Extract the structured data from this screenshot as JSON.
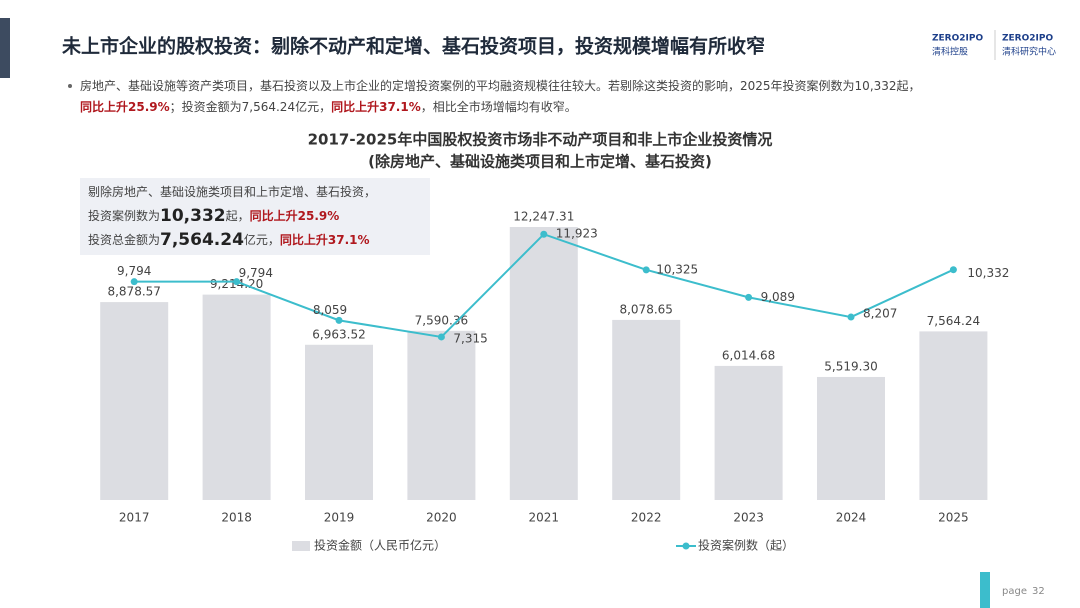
{
  "header": {
    "title": "未上市企业的股权投资：剔除不动产和定增、基石投资项目，投资规模增幅有所收窄",
    "logos": [
      {
        "brand": "ZERO2IPO",
        "name": "清科控股"
      },
      {
        "brand": "ZERO2IPO",
        "name": "清科研究中心"
      }
    ]
  },
  "bullet": {
    "lines": [
      [
        {
          "text": "房地产、基础设施等资产类项目，基石投资以及上市企业的定增投资案例的平均融资规模往往较大。若剔除这类投资的影响，2025年投资案例数为10,332起，",
          "emphasis": false
        }
      ],
      [
        {
          "text": "同比上升25.9%",
          "emphasis": true
        },
        {
          "text": "；投资金额为7,564.24亿元，",
          "emphasis": false
        },
        {
          "text": "同比上升37.1%",
          "emphasis": true
        },
        {
          "text": "，相比全市场增幅均有收窄。",
          "emphasis": false
        }
      ]
    ]
  },
  "chart_data": {
    "type": "combo",
    "title": "2017-2025年中国股权投资市场非不动产项目和非上市企业投资情况",
    "subtitle": "(除房地产、基础设施类项目和上市定增、基石投资)",
    "annotation": [
      [
        {
          "text": "剔除房地产、基础设施类项目和上市定增、基石投资，",
          "style": "normal"
        }
      ],
      [
        {
          "text": "投资案例数为",
          "style": "normal"
        },
        {
          "text": "10,332",
          "style": "big"
        },
        {
          "text": "起，",
          "style": "normal"
        },
        {
          "text": "同比上升25.9%",
          "style": "red"
        }
      ],
      [
        {
          "text": "投资总金额为",
          "style": "normal"
        },
        {
          "text": "7,564.24",
          "style": "big"
        },
        {
          "text": "亿元，",
          "style": "normal"
        },
        {
          "text": "同比上升37.1%",
          "style": "red"
        }
      ]
    ],
    "categories": [
      "2017",
      "2018",
      "2019",
      "2020",
      "2021",
      "2022",
      "2023",
      "2024",
      "2025"
    ],
    "series": [
      {
        "name": "投资金额（人民币亿元）",
        "type": "bar",
        "color": "#dcdde2",
        "values": [
          8878.57,
          9214.2,
          6963.52,
          7590.36,
          12247.31,
          8078.65,
          6014.68,
          5519.3,
          7564.24
        ],
        "value_labels": [
          "8,878.57",
          "9,214.20",
          "6,963.52",
          "7,590.36",
          "12,247.31",
          "8,078.65",
          "6,014.68",
          "5,519.30",
          "7,564.24"
        ]
      },
      {
        "name": "投资案例数（起）",
        "type": "line",
        "color": "#3cbdcc",
        "values": [
          9794,
          9794,
          8059,
          7315,
          11923,
          10325,
          9089,
          8207,
          10332
        ],
        "value_labels": [
          "9,794",
          "9,794",
          "8,059",
          "7,315",
          "11,923",
          "10,325",
          "9,089",
          "8,207",
          "10,332"
        ]
      }
    ]
  },
  "footer": {
    "page_label": "page",
    "page_number": "32"
  }
}
